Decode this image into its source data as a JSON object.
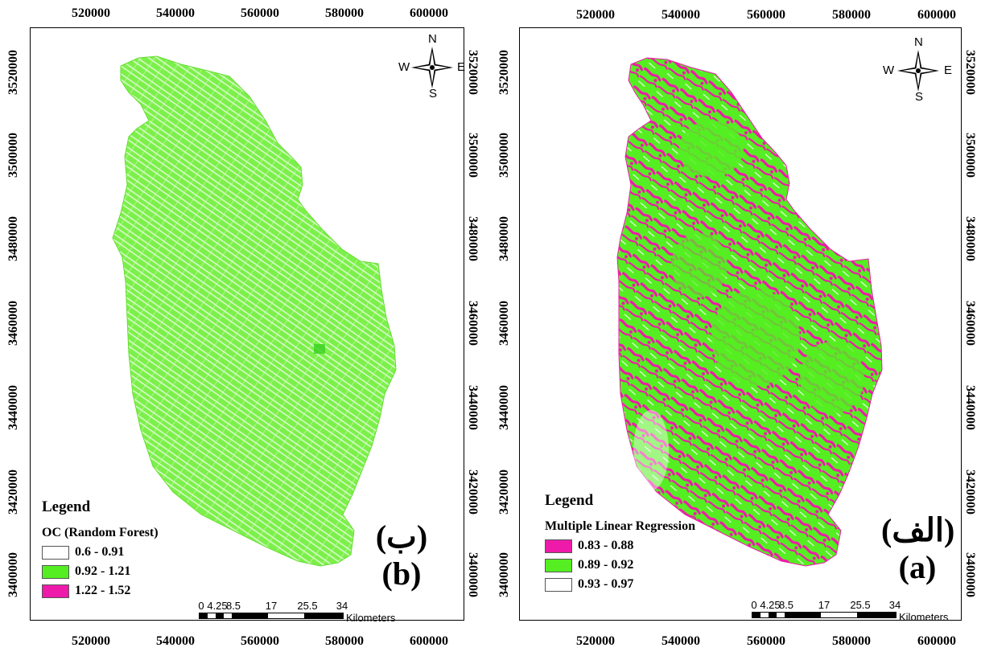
{
  "panels": [
    {
      "id": "left",
      "legend_title": "Legend",
      "legend_subtitle": "OC (Random Forest)",
      "classes": [
        {
          "label": "0.6 - 0.91",
          "color": "#ffffff"
        },
        {
          "label": "0.92 - 1.21",
          "color": "#55ee22"
        },
        {
          "label": "1.22 - 1.52",
          "color": "#ee1aaa"
        }
      ],
      "label_ar": "(ب)",
      "label_en": "(b)"
    },
    {
      "id": "right",
      "legend_title": "Legend",
      "legend_subtitle": "Multiple Linear Regression",
      "classes": [
        {
          "label": "0.83 - 0.88",
          "color": "#ee1aaa"
        },
        {
          "label": "0.89 - 0.92",
          "color": "#55ee22"
        },
        {
          "label": "0.93 - 0.97",
          "color": "#ffffff"
        }
      ],
      "label_ar": "(الف)",
      "label_en": "(a)"
    }
  ],
  "x_ticks": [
    "520000",
    "540000",
    "560000",
    "580000",
    "600000"
  ],
  "y_ticks": [
    "3520000",
    "3500000",
    "3480000",
    "3460000",
    "3440000",
    "3420000",
    "3400000"
  ],
  "compass": {
    "n": "N",
    "s": "S",
    "e": "E",
    "w": "W"
  },
  "scale": {
    "ticks": [
      "0",
      "4.25",
      "8.5",
      "17",
      "25.5",
      "34"
    ],
    "unit": "Kilometers"
  },
  "colors": {
    "green": "#55ee22",
    "magenta": "#ee1aaa"
  }
}
